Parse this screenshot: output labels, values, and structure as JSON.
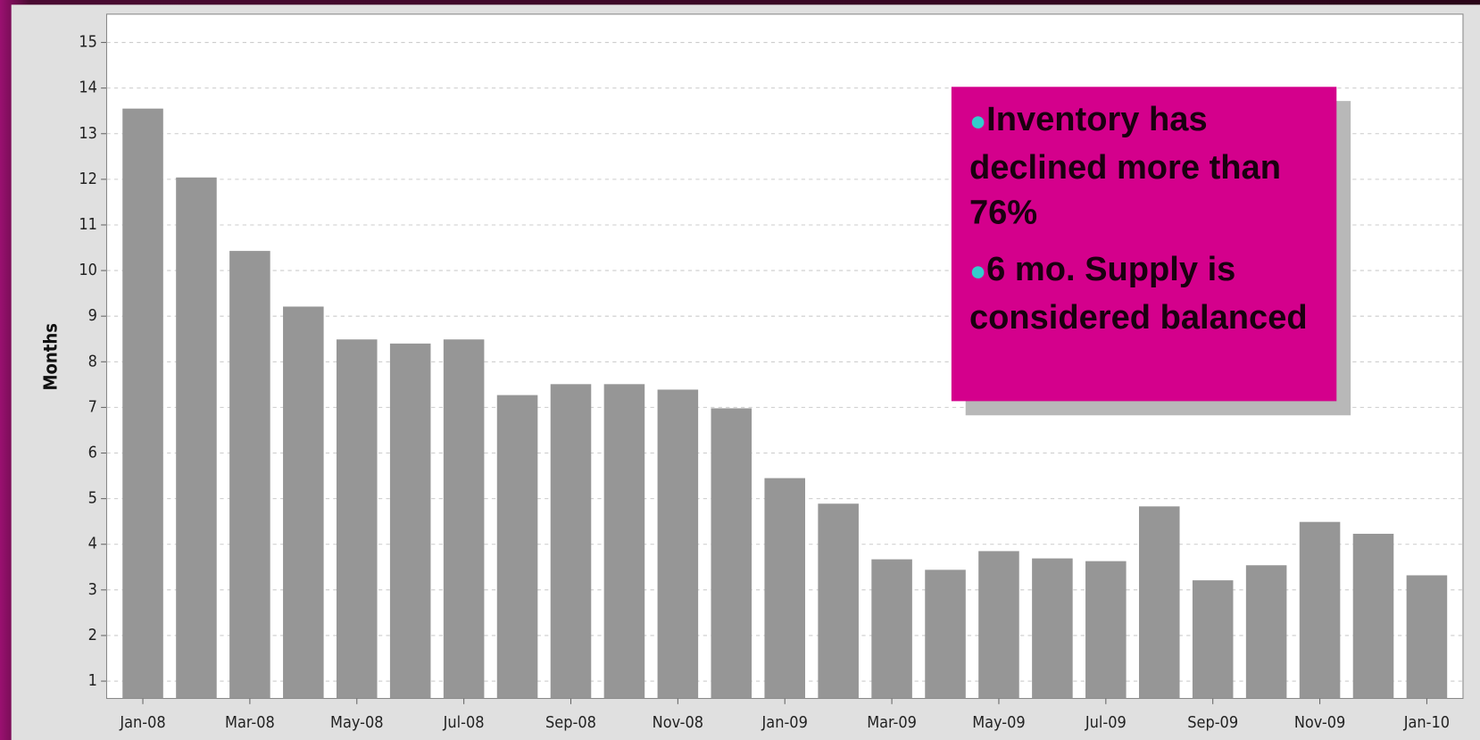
{
  "chart_data": {
    "type": "bar",
    "y_label": "Months",
    "categories": [
      "Jan-08",
      null,
      "Mar-08",
      null,
      "May-08",
      null,
      "Jul-08",
      null,
      "Sep-08",
      null,
      "Nov-08",
      null,
      "Jan-09",
      null,
      "Mar-09",
      null,
      "May-09",
      null,
      "Jul-09",
      null,
      "Sep-09",
      null,
      "Nov-09",
      null,
      "Jan-10"
    ],
    "values": [
      13.55,
      12.04,
      10.43,
      9.21,
      8.49,
      8.4,
      8.49,
      7.27,
      7.51,
      7.51,
      7.39,
      6.98,
      5.45,
      4.89,
      3.67,
      3.44,
      3.85,
      3.69,
      3.63,
      4.83,
      3.21,
      3.54,
      4.49,
      4.23,
      3.32
    ],
    "color": "#969696",
    "ylim": [
      0.62,
      15.62
    ],
    "yticks": [
      1,
      2,
      3,
      4,
      5,
      6,
      7,
      8,
      9,
      10,
      11,
      12,
      13,
      14,
      15
    ],
    "grid": true,
    "annotations": [
      "Inventory has declined more than 76%",
      "6 mo. Supply is considered balanced"
    ]
  }
}
